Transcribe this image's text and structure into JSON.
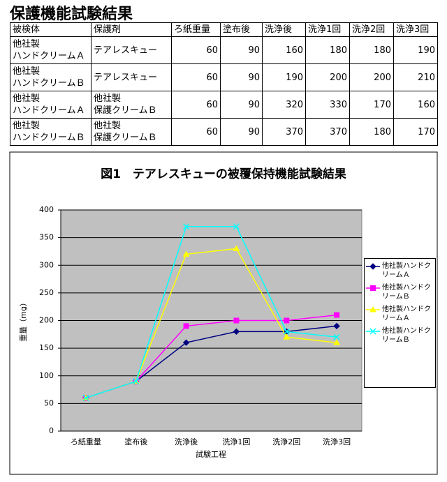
{
  "title": "保護機能試験結果",
  "table": {
    "header": [
      "被検体",
      "保護剤",
      "ろ紙重量",
      "塗布後",
      "洗浄後",
      "洗浄1回",
      "洗浄2回",
      "洗浄3回"
    ],
    "rows": [
      [
        "他社製\nハンドクリームＡ",
        "テアレスキュー",
        60,
        90,
        160,
        180,
        180,
        190
      ],
      [
        "他社製\nハンドクリームＢ",
        "テアレスキュー",
        60,
        90,
        190,
        200,
        200,
        210
      ],
      [
        "他社製\nハンドクリームＡ",
        "他社製\n保護クリームＢ",
        60,
        90,
        320,
        330,
        170,
        160
      ],
      [
        "他社製\nハンドクリームＢ",
        "他社製\n保護クリームＢ",
        60,
        90,
        370,
        370,
        180,
        170
      ]
    ]
  },
  "chart_data": {
    "type": "line",
    "title": "図1　テアレスキューの被覆保持機能試験結果",
    "x_label": "試験工程",
    "y_label": "重量（mg）",
    "categories": [
      "ろ紙重量",
      "塗布後",
      "洗浄後",
      "洗浄1回",
      "洗浄2回",
      "洗浄3回"
    ],
    "series": [
      {
        "name": "他社製ハンドクリームＡ",
        "color": "#000080",
        "values": [
          60,
          90,
          160,
          180,
          180,
          190
        ]
      },
      {
        "name": "他社製ハンドクリームＢ",
        "color": "#ff00ff",
        "values": [
          60,
          90,
          190,
          200,
          200,
          210
        ]
      },
      {
        "name": "他社製ハンドクリームＡ",
        "color": "#ffff00",
        "values": [
          60,
          90,
          320,
          330,
          170,
          160
        ]
      },
      {
        "name": "他社製ハンドクリームＢ",
        "color": "#00ffff",
        "values": [
          60,
          90,
          370,
          370,
          180,
          170
        ]
      }
    ],
    "ylim": [
      0,
      400
    ],
    "yticks": [
      0,
      50,
      100,
      150,
      200,
      250,
      300,
      350,
      400
    ],
    "grid": true,
    "legend": "right"
  }
}
